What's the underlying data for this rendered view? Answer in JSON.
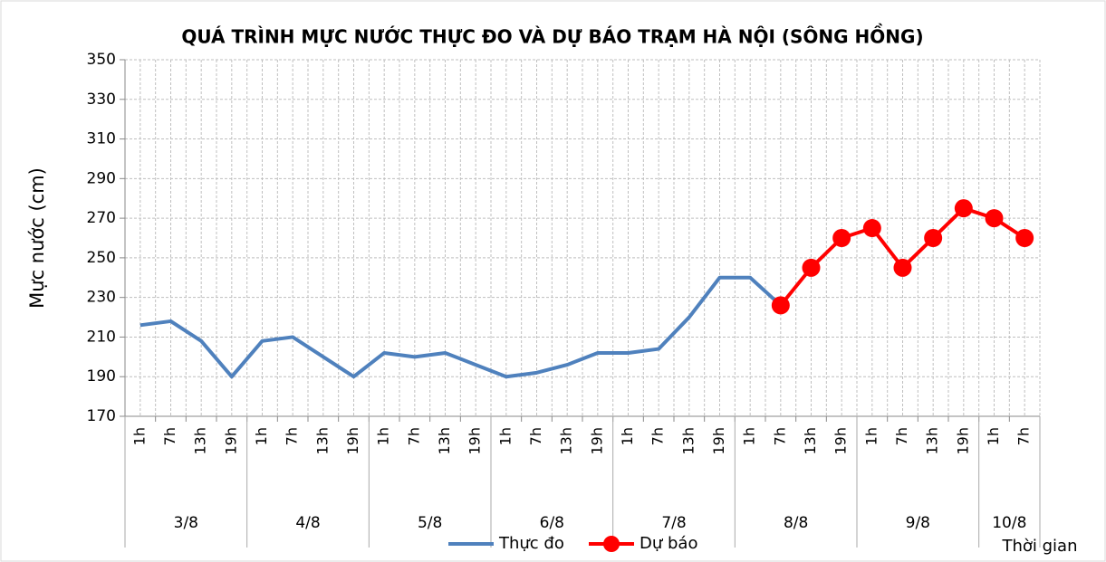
{
  "chart_data": {
    "type": "line",
    "title": "QUÁ TRÌNH MỰC NƯỚC THỰC ĐO VÀ DỰ BÁO TRẠM HÀ NỘI (SÔNG HỒNG)",
    "y_label": "Mực nước (cm)",
    "x_label": "Thời gian",
    "groups": [
      {
        "label": "3/8",
        "categories": [
          "1h",
          "7h",
          "13h",
          "19h"
        ]
      },
      {
        "label": "4/8",
        "categories": [
          "1h",
          "7h",
          "13h",
          "19h"
        ]
      },
      {
        "label": "5/8",
        "categories": [
          "1h",
          "7h",
          "13h",
          "19h"
        ]
      },
      {
        "label": "6/8",
        "categories": [
          "1h",
          "7h",
          "13h",
          "19h"
        ]
      },
      {
        "label": "7/8",
        "categories": [
          "1h",
          "7h",
          "13h",
          "19h"
        ]
      },
      {
        "label": "8/8",
        "categories": [
          "1h",
          "7h",
          "13h",
          "19h"
        ]
      },
      {
        "label": "9/8",
        "categories": [
          "1h",
          "7h",
          "13h",
          "19h"
        ]
      },
      {
        "label": "10/8",
        "categories": [
          "1h",
          "7h"
        ]
      }
    ],
    "series": [
      {
        "name": "Thực đo",
        "color": "#4f81bd",
        "marker": false,
        "values": [
          216,
          218,
          208,
          190,
          208,
          210,
          200,
          190,
          202,
          200,
          202,
          196,
          190,
          192,
          196,
          202,
          202,
          204,
          220,
          240,
          240,
          226,
          null,
          null,
          null,
          null,
          null,
          null,
          null,
          null
        ]
      },
      {
        "name": "Dự báo",
        "color": "#ff0000",
        "marker": true,
        "values": [
          null,
          null,
          null,
          null,
          null,
          null,
          null,
          null,
          null,
          null,
          null,
          null,
          null,
          null,
          null,
          null,
          null,
          null,
          null,
          null,
          null,
          226,
          245,
          260,
          265,
          245,
          260,
          275,
          270,
          260
        ]
      }
    ],
    "ylim": [
      170,
      350
    ],
    "yticks": [
      170,
      190,
      210,
      230,
      250,
      270,
      290,
      310,
      330,
      350
    ],
    "grid": true
  }
}
